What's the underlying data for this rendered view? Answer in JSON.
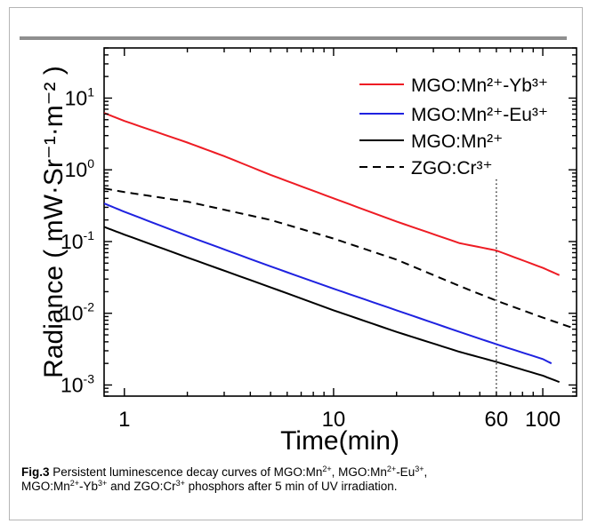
{
  "figure": {
    "label": "Fig.3",
    "caption_parts": [
      {
        "t": " Persistent luminescence decay curves of MGO:Mn"
      },
      {
        "sup": "2+"
      },
      {
        "t": ", MGO:Mn"
      },
      {
        "sup": "2+"
      },
      {
        "t": "-Eu"
      },
      {
        "sup": "3+"
      },
      {
        "t": ","
      },
      {
        "br": true
      },
      {
        "t": "MGO:Mn"
      },
      {
        "sup": "2+"
      },
      {
        "t": "-Yb"
      },
      {
        "sup": "3+"
      },
      {
        "t": " and ZGO:Cr"
      },
      {
        "sup": "3+"
      },
      {
        "t": " phosphors after 5 min of UV irradiation."
      }
    ]
  },
  "chart_data": {
    "type": "line",
    "x_scale": "log",
    "y_scale": "log",
    "xlabel": "Time(min)",
    "ylabel": "Radiance ( mW·Sr⁻¹·m⁻² )",
    "xlim": [
      0.8,
      145
    ],
    "ylim": [
      0.0007,
      50
    ],
    "x_tick_labels": [
      {
        "value": 1,
        "label": "1"
      },
      {
        "value": 10,
        "label": "10"
      },
      {
        "value": 60,
        "label": "60"
      },
      {
        "value": 100,
        "label": "100"
      }
    ],
    "y_tick_labels": [
      {
        "value": 0.001,
        "label": "10",
        "exp": "-3"
      },
      {
        "value": 0.01,
        "label": "10",
        "exp": "-2"
      },
      {
        "value": 0.1,
        "label": "10",
        "exp": "-1"
      },
      {
        "value": 1,
        "label": "10",
        "exp": "0"
      },
      {
        "value": 10,
        "label": "10",
        "exp": "1"
      }
    ],
    "reference_line": {
      "x": 60,
      "style": "dotted"
    },
    "legend_position": "top-right",
    "series": [
      {
        "name": "MGO:Mn²⁺-Yb³⁺",
        "color": "#ee1c24",
        "dash": "solid",
        "x": [
          0.8,
          1,
          2,
          3,
          5,
          10,
          20,
          40,
          60,
          100,
          120
        ],
        "y": [
          6.2,
          4.8,
          2.4,
          1.55,
          0.85,
          0.4,
          0.19,
          0.095,
          0.075,
          0.043,
          0.034
        ]
      },
      {
        "name": "MGO:Mn²⁺-Eu³⁺",
        "color": "#1f22e0",
        "dash": "solid",
        "x": [
          0.8,
          1,
          2,
          5,
          10,
          20,
          40,
          60,
          100,
          110
        ],
        "y": [
          0.34,
          0.26,
          0.12,
          0.045,
          0.022,
          0.011,
          0.0055,
          0.0037,
          0.0023,
          0.002
        ]
      },
      {
        "name": "MGO:Mn²⁺",
        "color": "#000000",
        "dash": "solid",
        "x": [
          0.8,
          1,
          2,
          5,
          10,
          20,
          40,
          60,
          100,
          120
        ],
        "y": [
          0.16,
          0.125,
          0.06,
          0.023,
          0.011,
          0.0055,
          0.0029,
          0.0021,
          0.00135,
          0.0011
        ]
      },
      {
        "name": "ZGO:Cr³⁺",
        "color": "#000000",
        "dash": "dashed",
        "x": [
          0.8,
          1,
          2,
          5,
          10,
          20,
          40,
          60,
          100,
          145
        ],
        "y": [
          0.55,
          0.49,
          0.36,
          0.2,
          0.11,
          0.056,
          0.024,
          0.015,
          0.0087,
          0.006
        ]
      }
    ]
  }
}
